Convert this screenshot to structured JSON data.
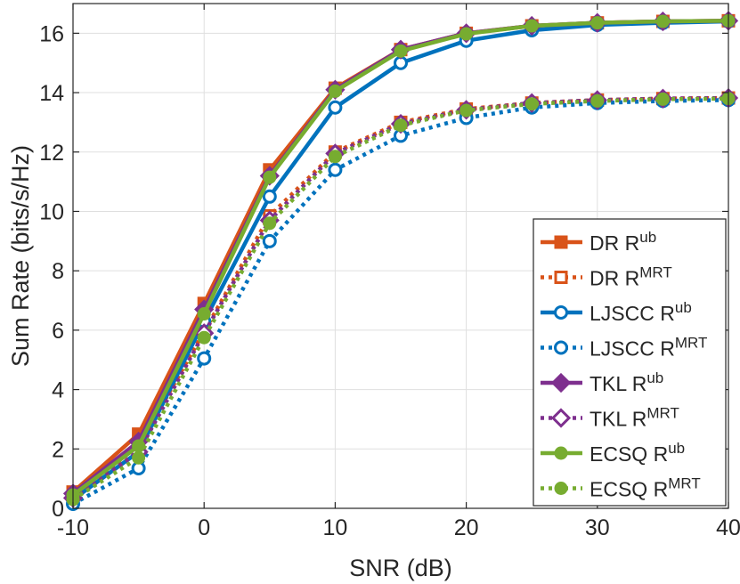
{
  "chart_data": {
    "type": "line",
    "title": "",
    "xlabel": "SNR (dB)",
    "ylabel": "Sum Rate (bits/s/Hz)",
    "x": [
      -10,
      -5,
      0,
      5,
      10,
      15,
      20,
      25,
      30,
      35,
      40
    ],
    "xlim": [
      -10,
      40
    ],
    "ylim": [
      0,
      17
    ],
    "xticks": [
      -10,
      0,
      10,
      20,
      30,
      40
    ],
    "yticks": [
      0,
      2,
      4,
      6,
      8,
      10,
      12,
      14,
      16
    ],
    "grid": true,
    "legend_position": "lower-right",
    "colors": {
      "DR": "#D95319",
      "LJSCC": "#0072BD",
      "TKL": "#7E2F8E",
      "ECSQ": "#77AC30"
    },
    "series": [
      {
        "name": "DR R^ub",
        "label_base": "DR R",
        "label_sup": "ub",
        "scheme": "DR",
        "style": "solid",
        "marker": "square-filled",
        "values": [
          0.55,
          2.5,
          6.9,
          11.4,
          14.15,
          15.45,
          16.0,
          16.25,
          16.35,
          16.4,
          16.42
        ]
      },
      {
        "name": "DR R^MRT",
        "label_base": "DR R",
        "label_sup": "MRT",
        "scheme": "DR",
        "style": "dotted",
        "marker": "square-open",
        "values": [
          0.4,
          2.1,
          5.95,
          9.85,
          12.0,
          13.0,
          13.45,
          13.65,
          13.75,
          13.8,
          13.82
        ]
      },
      {
        "name": "LJSCC R^ub",
        "label_base": "LJSCC R",
        "label_sup": "ub",
        "scheme": "LJSCC",
        "style": "solid",
        "marker": "circle-open",
        "values": [
          0.3,
          1.9,
          6.3,
          10.5,
          13.5,
          15.0,
          15.75,
          16.1,
          16.28,
          16.35,
          16.4
        ]
      },
      {
        "name": "LJSCC R^MRT",
        "label_base": "LJSCC R",
        "label_sup": "MRT",
        "scheme": "LJSCC",
        "style": "dotted",
        "marker": "circle-open",
        "values": [
          0.15,
          1.35,
          5.05,
          9.0,
          11.4,
          12.55,
          13.15,
          13.5,
          13.65,
          13.72,
          13.75
        ]
      },
      {
        "name": "TKL R^ub",
        "label_base": "TKL R",
        "label_sup": "ub",
        "scheme": "TKL",
        "style": "solid",
        "marker": "diamond-filled",
        "values": [
          0.5,
          2.25,
          6.7,
          11.2,
          14.1,
          15.45,
          16.0,
          16.25,
          16.35,
          16.4,
          16.42
        ]
      },
      {
        "name": "TKL R^MRT",
        "label_base": "TKL R",
        "label_sup": "MRT",
        "scheme": "TKL",
        "style": "dotted",
        "marker": "diamond-open",
        "values": [
          0.35,
          1.9,
          5.9,
          9.7,
          11.95,
          12.95,
          13.42,
          13.65,
          13.75,
          13.8,
          13.82
        ]
      },
      {
        "name": "ECSQ R^ub",
        "label_base": "ECSQ R",
        "label_sup": "ub",
        "scheme": "ECSQ",
        "style": "solid",
        "marker": "circle-filled",
        "values": [
          0.45,
          2.1,
          6.55,
          11.15,
          14.05,
          15.4,
          15.98,
          16.25,
          16.35,
          16.4,
          16.42
        ]
      },
      {
        "name": "ECSQ R^MRT",
        "label_base": "ECSQ R",
        "label_sup": "MRT",
        "scheme": "ECSQ",
        "style": "dotted",
        "marker": "circle-filled",
        "values": [
          0.3,
          1.7,
          5.75,
          9.6,
          11.85,
          12.9,
          13.4,
          13.62,
          13.72,
          13.78,
          13.8
        ]
      }
    ]
  }
}
